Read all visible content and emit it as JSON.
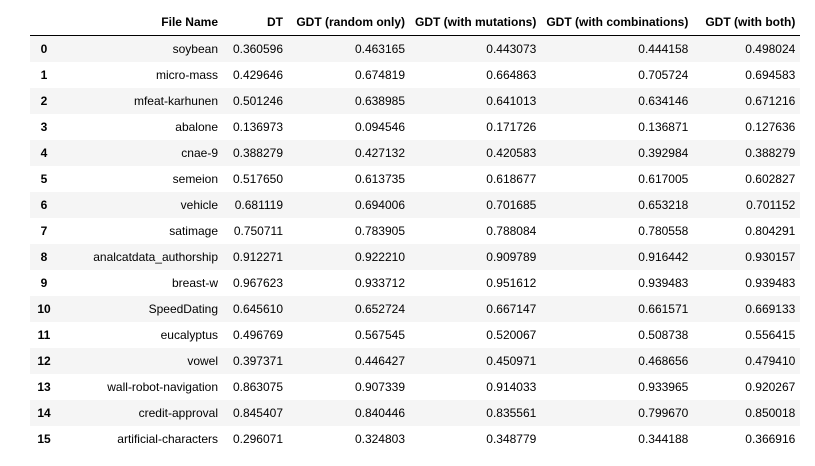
{
  "table": {
    "index_header": "",
    "columns": [
      "File Name",
      "DT",
      "GDT (random only)",
      "GDT (with mutations)",
      "GDT (with combinations)",
      "GDT (with both)"
    ],
    "rows": [
      {
        "index": "0",
        "cells": [
          "soybean",
          "0.360596",
          "0.463165",
          "0.443073",
          "0.444158",
          "0.498024"
        ]
      },
      {
        "index": "1",
        "cells": [
          "micro-mass",
          "0.429646",
          "0.674819",
          "0.664863",
          "0.705724",
          "0.694583"
        ]
      },
      {
        "index": "2",
        "cells": [
          "mfeat-karhunen",
          "0.501246",
          "0.638985",
          "0.641013",
          "0.634146",
          "0.671216"
        ]
      },
      {
        "index": "3",
        "cells": [
          "abalone",
          "0.136973",
          "0.094546",
          "0.171726",
          "0.136871",
          "0.127636"
        ]
      },
      {
        "index": "4",
        "cells": [
          "cnae-9",
          "0.388279",
          "0.427132",
          "0.420583",
          "0.392984",
          "0.388279"
        ]
      },
      {
        "index": "5",
        "cells": [
          "semeion",
          "0.517650",
          "0.613735",
          "0.618677",
          "0.617005",
          "0.602827"
        ]
      },
      {
        "index": "6",
        "cells": [
          "vehicle",
          "0.681119",
          "0.694006",
          "0.701685",
          "0.653218",
          "0.701152"
        ]
      },
      {
        "index": "7",
        "cells": [
          "satimage",
          "0.750711",
          "0.783905",
          "0.788084",
          "0.780558",
          "0.804291"
        ]
      },
      {
        "index": "8",
        "cells": [
          "analcatdata_authorship",
          "0.912271",
          "0.922210",
          "0.909789",
          "0.916442",
          "0.930157"
        ]
      },
      {
        "index": "9",
        "cells": [
          "breast-w",
          "0.967623",
          "0.933712",
          "0.951612",
          "0.939483",
          "0.939483"
        ]
      },
      {
        "index": "10",
        "cells": [
          "SpeedDating",
          "0.645610",
          "0.652724",
          "0.667147",
          "0.661571",
          "0.669133"
        ]
      },
      {
        "index": "11",
        "cells": [
          "eucalyptus",
          "0.496769",
          "0.567545",
          "0.520067",
          "0.508738",
          "0.556415"
        ]
      },
      {
        "index": "12",
        "cells": [
          "vowel",
          "0.397371",
          "0.446427",
          "0.450971",
          "0.468656",
          "0.479410"
        ]
      },
      {
        "index": "13",
        "cells": [
          "wall-robot-navigation",
          "0.863075",
          "0.907339",
          "0.914033",
          "0.933965",
          "0.920267"
        ]
      },
      {
        "index": "14",
        "cells": [
          "credit-approval",
          "0.845407",
          "0.840446",
          "0.835561",
          "0.799670",
          "0.850018"
        ]
      },
      {
        "index": "15",
        "cells": [
          "artificial-characters",
          "0.296071",
          "0.324803",
          "0.348779",
          "0.344188",
          "0.366916"
        ]
      }
    ]
  }
}
